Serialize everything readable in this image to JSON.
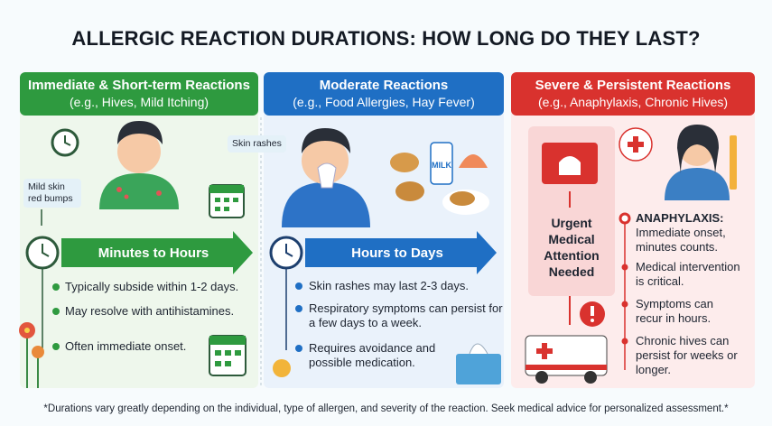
{
  "title": "ALLERGIC REACTION DURATIONS: HOW LONG DO THEY LAST?",
  "columns": [
    {
      "heading": "Immediate & Short-term Reactions",
      "examples": "(e.g., Hives, Mild Itching)",
      "callout": "Mild skin red bumps",
      "duration": "Minutes to Hours",
      "points": [
        "Typically subside within 1-2 days.",
        "May resolve with antihistamines.",
        "Often immediate onset."
      ]
    },
    {
      "heading": "Moderate Reactions",
      "examples": "(e.g., Food Allergies, Hay Fever)",
      "callout": "Skin rashes",
      "duration": "Hours to Days",
      "label": "MILK",
      "points": [
        "Skin rashes may last 2-3 days.",
        "Respiratory symptoms can persist for a few days to a week.",
        "Requires avoidance and possible medication."
      ]
    },
    {
      "heading": "Severe & Persistent Reactions",
      "examples": "(e.g., Anaphylaxis, Chronic Hives)",
      "urgent": "Urgent Medical Attention Needed",
      "lead": {
        "label": "ANAPHYLAXIS:",
        "text": "Immediate onset, minutes counts."
      },
      "points": [
        "Medical intervention is critical.",
        "Symptoms can recur in hours.",
        "Chronic hives can persist for weeks or longer."
      ]
    }
  ],
  "footnote": "*Durations vary greatly depending on the individual, type of allergen, and severity of the reaction. Seek medical advice for personalized assessment.*"
}
